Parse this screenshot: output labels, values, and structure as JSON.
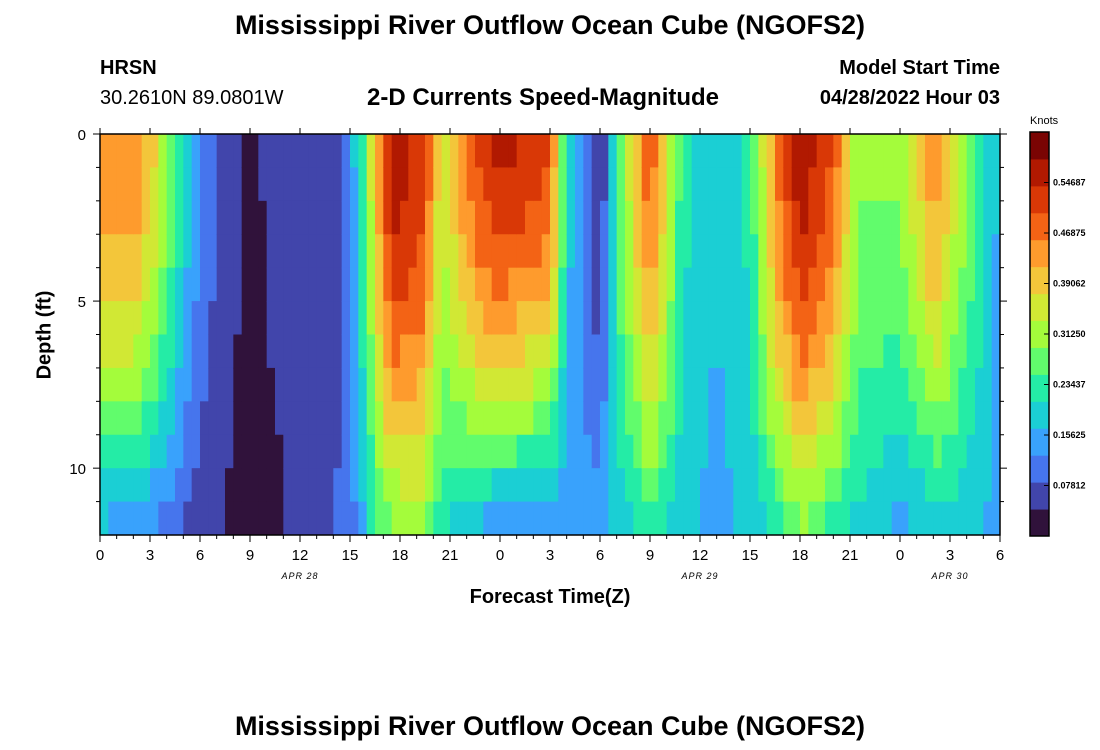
{
  "header": {
    "title_top": "Mississippi River Outflow Ocean Cube (NGOFS2)",
    "title_bottom": "Mississippi River Outflow Ocean Cube (NGOFS2)",
    "station_code": "HRSN",
    "station_coords": "30.2610N  89.0801W",
    "subtitle": "2-D Currents Speed-Magnitude",
    "model_start_label": "Model Start Time",
    "model_start_value": "04/28/2022 Hour 03"
  },
  "chart_data": {
    "type": "heatmap",
    "title": "2-D Currents Speed-Magnitude",
    "xlabel": "Forecast Time(Z)",
    "ylabel": "Depth (ft)",
    "x_ticks": [
      "0",
      "3",
      "6",
      "9",
      "12",
      "15",
      "18",
      "21",
      "0",
      "3",
      "6",
      "9",
      "12",
      "15",
      "18",
      "21",
      "0",
      "3",
      "6"
    ],
    "date_labels": [
      {
        "label": "APR 28",
        "hours": 12
      },
      {
        "label": "APR 29",
        "hours": 36
      },
      {
        "label": "APR 30",
        "hours": 51
      }
    ],
    "y_ticks": [
      "0",
      "5",
      "10"
    ],
    "ylim": [
      0,
      12
    ],
    "xlim_hours": [
      0,
      54
    ],
    "colorbar": {
      "unit": "Knots",
      "labels": [
        "0.54687",
        "0.46875",
        "0.39062",
        "0.31250",
        "0.23437",
        "0.15625",
        "0.07812"
      ],
      "range": [
        0.0,
        0.625
      ],
      "colors": [
        "#30123b",
        "#4145ab",
        "#4675ed",
        "#39a2fc",
        "#1bcfd4",
        "#24eca6",
        "#61fc6c",
        "#a4fc3b",
        "#d1e834",
        "#f3c63a",
        "#fe9b2d",
        "#f36315",
        "#d93806",
        "#b11901",
        "#7a0403"
      ]
    },
    "surface_speed_profile": [
      {
        "hour": 0,
        "speed": 0.46
      },
      {
        "hour": 2,
        "speed": 0.46
      },
      {
        "hour": 3.5,
        "speed": 0.36
      },
      {
        "hour": 4.5,
        "speed": 0.25
      },
      {
        "hour": 6,
        "speed": 0.12
      },
      {
        "hour": 9,
        "speed": 0.03
      },
      {
        "hour": 12,
        "speed": 0.08
      },
      {
        "hour": 14.5,
        "speed": 0.07
      },
      {
        "hour": 15.5,
        "speed": 0.2
      },
      {
        "hour": 17.5,
        "speed": 0.58
      },
      {
        "hour": 19.5,
        "speed": 0.52
      },
      {
        "hour": 20.5,
        "speed": 0.34
      },
      {
        "hour": 22.5,
        "speed": 0.5
      },
      {
        "hour": 24,
        "speed": 0.56
      },
      {
        "hour": 27,
        "speed": 0.5
      },
      {
        "hour": 28,
        "speed": 0.2
      },
      {
        "hour": 30,
        "speed": 0.02
      },
      {
        "hour": 31,
        "speed": 0.25
      },
      {
        "hour": 33,
        "speed": 0.5
      },
      {
        "hour": 35,
        "speed": 0.22
      },
      {
        "hour": 37,
        "speed": 0.18
      },
      {
        "hour": 39,
        "speed": 0.22
      },
      {
        "hour": 40.5,
        "speed": 0.45
      },
      {
        "hour": 42,
        "speed": 0.58
      },
      {
        "hour": 44,
        "speed": 0.5
      },
      {
        "hour": 45.5,
        "speed": 0.3
      },
      {
        "hour": 48,
        "speed": 0.3
      },
      {
        "hour": 50,
        "speed": 0.45
      },
      {
        "hour": 52,
        "speed": 0.3
      },
      {
        "hour": 54,
        "speed": 0.15
      }
    ],
    "bottom_speed_profile": [
      {
        "hour": 0,
        "speed": 0.15
      },
      {
        "hour": 3,
        "speed": 0.12
      },
      {
        "hour": 6,
        "speed": 0.06
      },
      {
        "hour": 9,
        "speed": 0.01
      },
      {
        "hour": 12,
        "speed": 0.05
      },
      {
        "hour": 15,
        "speed": 0.1
      },
      {
        "hour": 17,
        "speed": 0.26
      },
      {
        "hour": 19,
        "speed": 0.3
      },
      {
        "hour": 21,
        "speed": 0.2
      },
      {
        "hour": 24,
        "speed": 0.12
      },
      {
        "hour": 28,
        "speed": 0.12
      },
      {
        "hour": 30,
        "speed": 0.16
      },
      {
        "hour": 33,
        "speed": 0.22
      },
      {
        "hour": 37,
        "speed": 0.14
      },
      {
        "hour": 40,
        "speed": 0.2
      },
      {
        "hour": 42,
        "speed": 0.28
      },
      {
        "hour": 44,
        "speed": 0.22
      },
      {
        "hour": 48,
        "speed": 0.15
      },
      {
        "hour": 51,
        "speed": 0.18
      },
      {
        "hour": 54,
        "speed": 0.15
      }
    ]
  }
}
